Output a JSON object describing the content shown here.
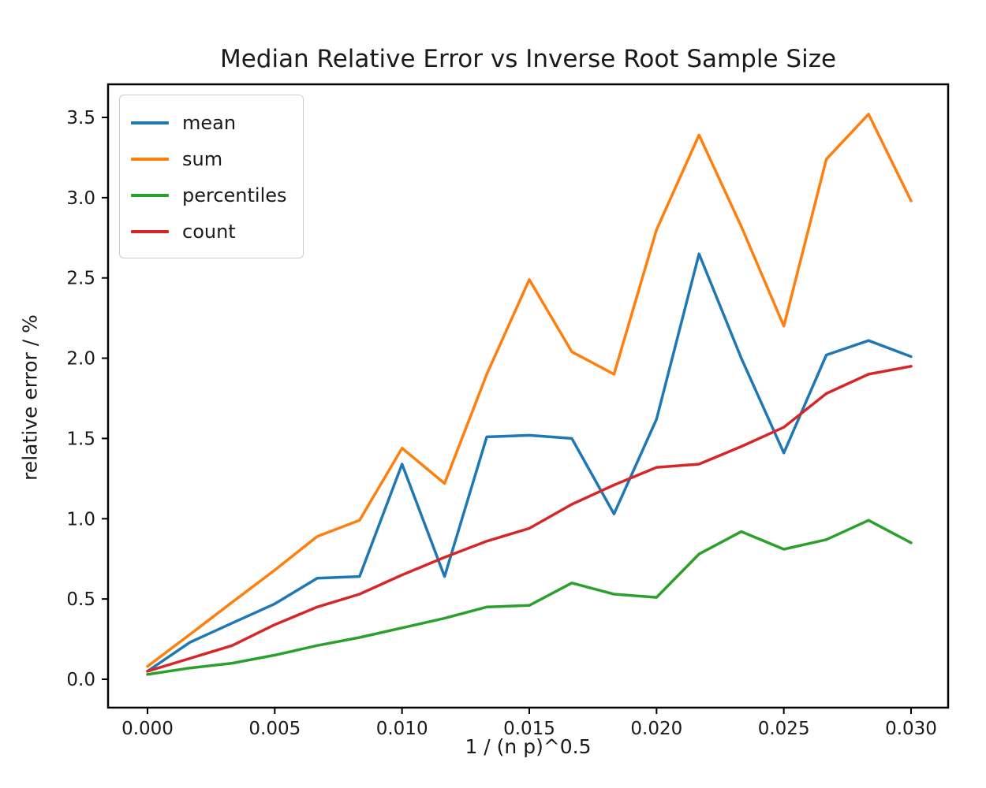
{
  "title": "Median Relative Error vs Inverse Root Sample Size",
  "xlabel": "1 / (n p)^0.5",
  "ylabel": "relative error / %",
  "axes": {
    "x_tick_labels": [
      "0.000",
      "0.005",
      "0.010",
      "0.015",
      "0.020",
      "0.025",
      "0.030"
    ],
    "x_tick_values": [
      0.0,
      0.005,
      0.01,
      0.015,
      0.02,
      0.025,
      0.03
    ],
    "y_tick_labels": [
      "0.0",
      "0.5",
      "1.0",
      "1.5",
      "2.0",
      "2.5",
      "3.0",
      "3.5"
    ],
    "y_tick_values": [
      0.0,
      0.5,
      1.0,
      1.5,
      2.0,
      2.5,
      3.0,
      3.5
    ],
    "xlim": [
      -0.00155,
      0.03146
    ],
    "ylim": [
      -0.177,
      3.706
    ],
    "grid": false
  },
  "chart_data": {
    "type": "line",
    "title": "Median Relative Error vs Inverse Root Sample Size",
    "xlabel": "1 / (n p)^0.5",
    "ylabel": "relative error / %",
    "legend_position": "upper left",
    "x": [
      0.0,
      0.00167,
      0.00333,
      0.005,
      0.00667,
      0.00833,
      0.01,
      0.01167,
      0.01333,
      0.015,
      0.01667,
      0.01833,
      0.02,
      0.02167,
      0.02333,
      0.025,
      0.02667,
      0.02833,
      0.03
    ],
    "series": [
      {
        "name": "mean",
        "color": "#1f77b4",
        "values": [
          0.05,
          0.23,
          0.35,
          0.47,
          0.63,
          0.64,
          1.34,
          0.64,
          1.51,
          1.52,
          1.5,
          1.03,
          1.62,
          2.65,
          2.0,
          1.41,
          2.02,
          2.11,
          2.01
        ]
      },
      {
        "name": "sum",
        "color": "#ff7f0e",
        "values": [
          0.08,
          0.28,
          0.48,
          0.68,
          0.89,
          0.99,
          1.44,
          1.22,
          1.9,
          2.49,
          2.04,
          1.9,
          2.8,
          3.39,
          2.82,
          2.2,
          3.24,
          3.52,
          2.98
        ]
      },
      {
        "name": "percentiles",
        "color": "#2ca02c",
        "values": [
          0.03,
          0.07,
          0.1,
          0.15,
          0.21,
          0.26,
          0.32,
          0.38,
          0.45,
          0.46,
          0.6,
          0.53,
          0.51,
          0.78,
          0.92,
          0.81,
          0.87,
          0.99,
          0.85
        ]
      },
      {
        "name": "count",
        "color": "#d62728",
        "values": [
          0.05,
          0.13,
          0.21,
          0.34,
          0.45,
          0.53,
          0.65,
          0.76,
          0.86,
          0.94,
          1.09,
          1.21,
          1.32,
          1.34,
          1.45,
          1.57,
          1.78,
          1.9,
          1.95
        ]
      }
    ]
  }
}
